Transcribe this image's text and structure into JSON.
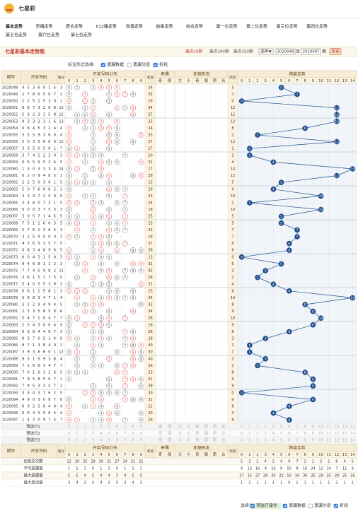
{
  "header": {
    "logo_title": "七星彩",
    "nav": [
      "基本走势",
      "奇偶走势",
      "质合走势",
      "012路走势",
      "和值走势",
      "跨度走势",
      "综合走势",
      "第一位走势",
      "第二位走势",
      "第三位走势",
      "第四位走势",
      "第五位走势",
      "第六位走势",
      "第七位走势"
    ]
  },
  "title_bar": {
    "title": "七星彩基本走势图",
    "ranges": [
      "最近50期",
      "最近100期",
      "最近150期"
    ],
    "select": "选择",
    "from": "2020048",
    "to_label": "至",
    "to": "2020097",
    "unit": "期",
    "button": "查询"
  },
  "options": {
    "label": "标注形式选择:",
    "items": [
      {
        "label": "遗漏数据",
        "checked": true
      },
      {
        "label": "遗漏分层",
        "checked": false
      },
      {
        "label": "折线",
        "checked": true
      }
    ]
  },
  "table": {
    "columns": {
      "issue": "期号",
      "number": "开奖号码",
      "repeat": "重号",
      "distribution": "开奖号码分布",
      "sum": "和值",
      "odd_even": "奇偶",
      "shape": "和值形态",
      "span": "跨度",
      "trend": "跨度走势"
    },
    "odd_even_labels": [
      "奇",
      "偶"
    ],
    "shape_labels": [
      "大",
      "小",
      "奇",
      "偶",
      "质",
      "合"
    ],
    "digits": [
      0,
      1,
      2,
      3,
      4,
      5,
      6,
      7,
      8,
      9
    ],
    "trend_axis": [
      0,
      1,
      2,
      3,
      4,
      5,
      6,
      7,
      8,
      9,
      10,
      11,
      12,
      13,
      14
    ],
    "issues": [
      "2020048",
      "2020049",
      "2020050",
      "2020051",
      "2020052",
      "2020053",
      "2020054",
      "2020055",
      "2020056",
      "2020057",
      "2020058",
      "2020059",
      "2020060",
      "2020061",
      "2020062",
      "2020063",
      "2020064",
      "2020065",
      "2020066",
      "2020067",
      "2020068",
      "2020069",
      "2020070",
      "2020071",
      "2020072",
      "2020073",
      "2020074",
      "2020075",
      "2020076",
      "2020077",
      "2020078",
      "2020079",
      "2020080",
      "2020081",
      "2020082",
      "2020083",
      "2020084",
      "2020085",
      "2020086",
      "2020087",
      "2020088",
      "2020089",
      "2020090",
      "2020091",
      "2020092",
      "2020093",
      "2020094",
      "2020095",
      "2020096",
      "2020097"
    ],
    "numbers": [
      [
        4,
        5,
        3,
        6,
        0,
        1,
        5
      ],
      [
        2,
        7,
        8,
        6,
        5,
        0,
        7
      ],
      [
        2,
        2,
        5,
        2,
        5,
        3,
        0
      ],
      [
        6,
        8,
        7,
        3,
        2,
        0,
        8
      ],
      [
        5,
        3,
        2,
        3,
        1,
        5,
        8
      ],
      [
        4,
        3,
        3,
        2,
        3,
        1,
        6
      ],
      [
        0,
        6,
        4,
        5,
        3,
        2,
        4
      ],
      [
        5,
        5,
        5,
        9,
        3,
        6,
        0
      ],
      [
        5,
        0,
        3,
        5,
        6,
        8,
        0
      ],
      [
        3,
        3,
        5,
        0,
        5,
        0,
        1
      ],
      [
        3,
        7,
        4,
        1,
        2,
        3,
        0
      ],
      [
        0,
        6,
        5,
        9,
        5,
        2,
        4
      ],
      [
        1,
        3,
        0,
        3,
        3,
        3,
        4
      ],
      [
        0,
        2,
        0,
        9,
        4,
        8,
        5
      ],
      [
        2,
        2,
        5,
        0,
        3,
        0,
        1
      ],
      [
        5,
        0,
        7,
        6,
        0,
        6,
        5
      ],
      [
        3,
        3,
        3,
        7,
        2,
        5,
        0
      ],
      [
        3,
        4,
        6,
        0,
        7,
        3,
        1
      ],
      [
        0,
        0,
        0,
        3,
        7,
        5,
        3
      ],
      [
        3,
        0,
        5,
        7,
        1,
        4,
        5
      ],
      [
        7,
        5,
        1,
        1,
        6,
        0,
        3
      ],
      [
        5,
        7,
        6,
        1,
        3,
        6,
        5
      ],
      [
        3,
        1,
        5,
        4,
        5,
        0,
        0
      ],
      [
        4,
        7,
        6,
        5,
        3,
        5,
        7
      ],
      [
        0,
        8,
        3,
        4,
        8,
        9,
        6
      ],
      [
        0,
        0,
        4,
        3,
        1,
        5,
        0
      ],
      [
        9,
        4,
        6,
        8,
        1,
        1,
        2
      ],
      [
        7,
        7,
        4,
        5,
        9,
        8,
        2
      ],
      [
        3,
        6,
        1,
        5,
        1,
        7,
        5
      ],
      [
        5,
        4,
        0,
        5,
        5,
        3,
        9
      ],
      [
        0,
        6,
        1,
        2,
        5,
        8,
        1
      ],
      [
        5,
        6,
        8,
        3,
        4,
        7,
        1
      ],
      [
        3,
        1,
        2,
        9,
        4,
        9,
        4
      ],
      [
        2,
        3,
        3,
        5,
        8,
        5,
        8
      ],
      [
        5,
        4,
        7,
        1,
        0,
        4,
        7
      ],
      [
        2,
        5,
        4,
        3,
        0,
        0,
        4
      ],
      [
        0,
        3,
        8,
        4,
        4,
        0,
        7
      ],
      [
        8,
        3,
        7,
        0,
        5,
        1,
        4
      ],
      [
        8,
        7,
        1,
        3,
        8,
        4,
        9
      ],
      [
        3,
        9,
        3,
        8,
        6,
        0,
        1
      ],
      [
        9,
        5,
        1,
        5,
        9,
        3,
        8
      ],
      [
        7,
        1,
        6,
        8,
        3,
        4,
        7
      ],
      [
        7,
        0,
        1,
        6,
        1,
        2,
        6
      ],
      [
        7,
        9,
        5,
        8,
        5,
        0,
        7
      ],
      [
        7,
        9,
        5,
        3,
        3,
        5,
        7
      ],
      [
        3,
        5,
        4,
        3,
        7,
        6,
        2
      ],
      [
        4,
        9,
        0,
        3,
        0,
        8,
        7
      ],
      [
        6,
        0,
        2,
        3,
        6,
        4,
        0
      ],
      [
        0,
        6,
        4,
        0,
        9,
        6,
        5
      ],
      [
        1,
        4,
        3,
        0,
        9,
        7,
        5
      ]
    ],
    "repeats": [
      3,
      2,
      1,
      12,
      12,
      13,
      4,
      4,
      12,
      7,
      3,
      5,
      14,
      1,
      5,
      3,
      9,
      5,
      3,
      5,
      5,
      3,
      3,
      5,
      5,
      3,
      3,
      11,
      5,
      3,
      3,
      4,
      5,
      6,
      7,
      9,
      3,
      9,
      2,
      12,
      4,
      7,
      5,
      1,
      1,
      5,
      8,
      4,
      4,
      7
    ],
    "sums": [
      24,
      35,
      19,
      34,
      27,
      22,
      24,
      33,
      27,
      17,
      20,
      31,
      17,
      28,
      13,
      29,
      23,
      24,
      18,
      25,
      23,
      33,
      18,
      37,
      38,
      13,
      31,
      42,
      28,
      31,
      23,
      34,
      32,
      34,
      28,
      18,
      26,
      28,
      40,
      30,
      40,
      36,
      23,
      41,
      39,
      30,
      31,
      21,
      30,
      29
    ],
    "spans": [
      5,
      7,
      0,
      12,
      12,
      12,
      8,
      2,
      12,
      1,
      1,
      4,
      14,
      12,
      5,
      4,
      10,
      1,
      10,
      5,
      5,
      7,
      7,
      6,
      6,
      0,
      5,
      3,
      2,
      4,
      6,
      14,
      8,
      9,
      10,
      9,
      6,
      3,
      1,
      1,
      3,
      2,
      8,
      9,
      9,
      0,
      9,
      6,
      4,
      6
    ],
    "preselect_rows": [
      "预选行1",
      "预选行2",
      "预选行3"
    ],
    "stats": [
      {
        "label": "出现总次数",
        "distribution": [
          22,
          20,
          25,
          29,
          26,
          21,
          27,
          24,
          21,
          21
        ],
        "trend": [
          5,
          3,
          2,
          4,
          2,
          4,
          0,
          7,
          2,
          1,
          3,
          1,
          6,
          4,
          5
        ]
      },
      {
        "label": "平均遗漏值",
        "distribution": [
          1,
          1,
          1,
          0,
          1,
          1,
          0,
          1,
          1,
          1
        ],
        "trend": [
          9,
          13,
          16,
          9,
          16,
          9,
          50,
          8,
          16,
          24,
          12,
          24,
          7,
          11,
          9
        ]
      },
      {
        "label": "最大遗漏值",
        "distribution": [
          5,
          5,
          4,
          5,
          4,
          4,
          3,
          4,
          5,
          5
        ],
        "trend": [
          27,
          15,
          27,
          28,
          30,
          22,
          50,
          16,
          36,
          25,
          29,
          25,
          20,
          25,
          16
        ]
      },
      {
        "label": "最大连出值",
        "distribution": [
          3,
          4,
          3,
          4,
          4,
          3,
          5,
          3,
          4,
          3
        ],
        "trend": [
          1,
          1,
          1,
          1,
          1,
          1,
          0,
          1,
          1,
          1,
          1,
          1,
          2,
          1,
          1
        ]
      }
    ]
  },
  "footer": {
    "label": "选择:",
    "items": [
      {
        "label": "预选行操作",
        "checked": true
      },
      {
        "label": "遗漏数据",
        "checked": true
      },
      {
        "label": "遗漏分层",
        "checked": false
      },
      {
        "label": "折线",
        "checked": true
      }
    ]
  }
}
